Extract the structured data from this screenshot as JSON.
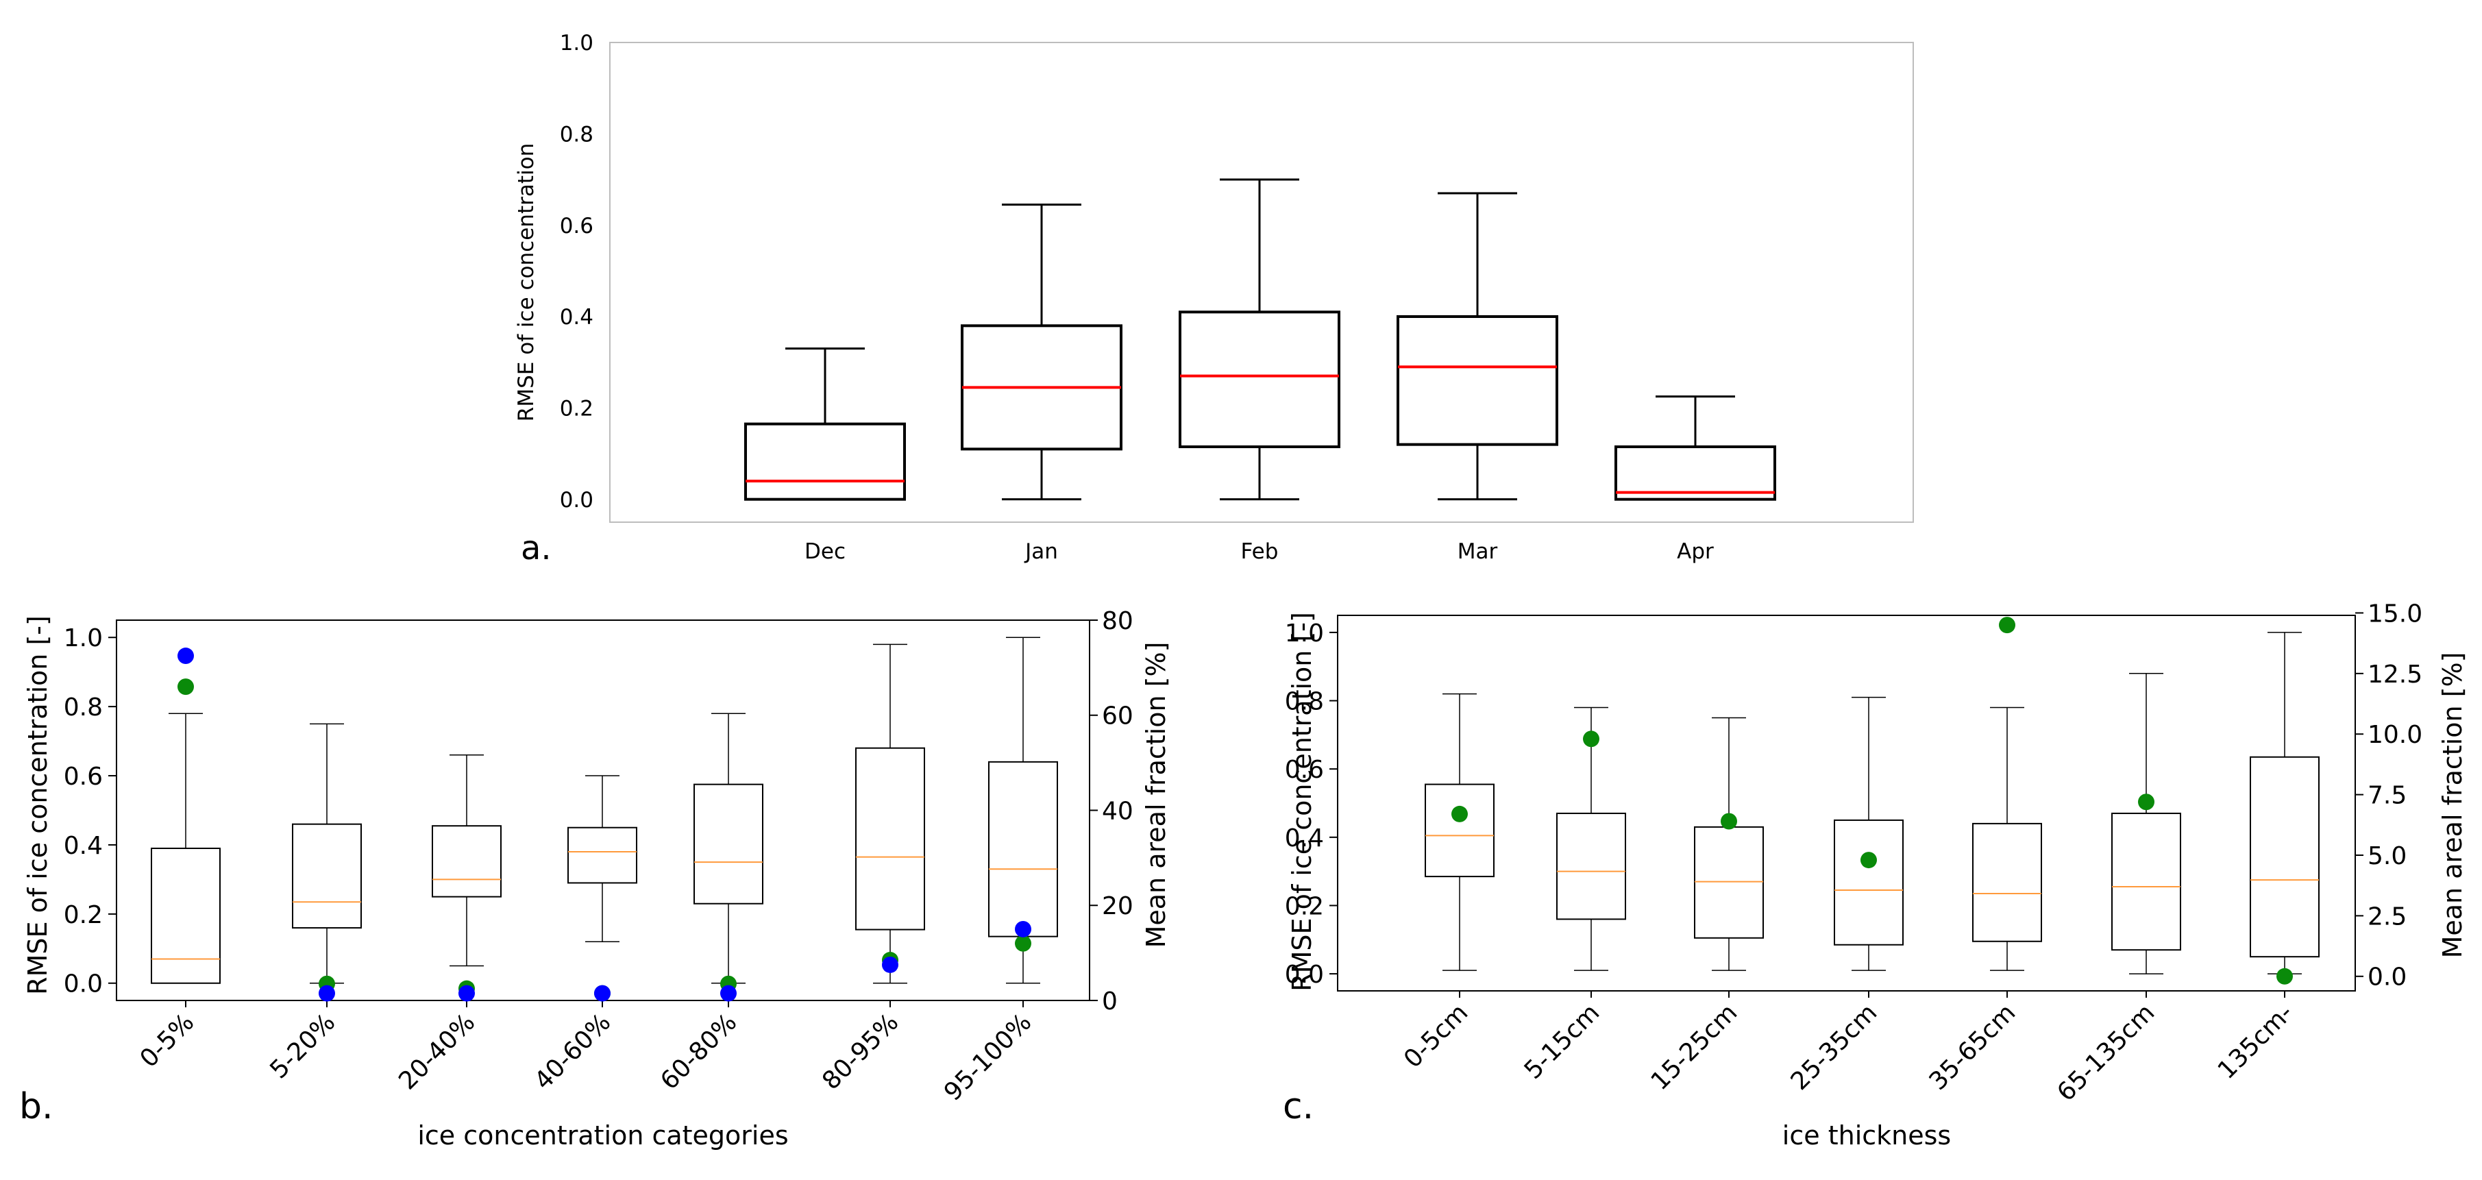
{
  "chart_data": [
    {
      "panel_label": "a.",
      "type": "box",
      "ylabel": "RMSE of ice concentration",
      "ylim": [
        -0.05,
        1.0
      ],
      "yticks": [
        "0.0",
        "0.2",
        "0.4",
        "0.6",
        "0.8",
        "1.0"
      ],
      "categories": [
        "Dec",
        "Jan",
        "Feb",
        "Mar",
        "Apr"
      ],
      "boxes": [
        {
          "whislo": 0.0,
          "q1": 0.0,
          "med": 0.04,
          "q3": 0.165,
          "whishi": 0.33
        },
        {
          "whislo": 0.0,
          "q1": 0.11,
          "med": 0.245,
          "q3": 0.38,
          "whishi": 0.645
        },
        {
          "whislo": 0.0,
          "q1": 0.115,
          "med": 0.27,
          "q3": 0.41,
          "whishi": 0.7
        },
        {
          "whislo": 0.0,
          "q1": 0.12,
          "med": 0.29,
          "q3": 0.4,
          "whishi": 0.67
        },
        {
          "whislo": 0.0,
          "q1": 0.0,
          "med": 0.015,
          "q3": 0.115,
          "whishi": 0.225
        }
      ],
      "colors": {
        "box": "#000000",
        "median": "#ff0000"
      }
    },
    {
      "panel_label": "b.",
      "type": "box",
      "xlabel": "ice concentration categories",
      "ylabel": "RMSE of ice concentration [-]",
      "y2label": "Mean areal fraction [%]",
      "ylim": [
        -0.05,
        1.05
      ],
      "y2lim": [
        0,
        80
      ],
      "yticks": [
        "0.0",
        "0.2",
        "0.4",
        "0.6",
        "0.8",
        "1.0"
      ],
      "y2ticks": [
        "0",
        "20",
        "40",
        "60",
        "80"
      ],
      "categories": [
        "0-5%",
        "5-20%",
        "20-40%",
        "40-60%",
        "60-80%",
        "80-95%",
        "95-100%"
      ],
      "boxes": [
        {
          "whislo": 0.0,
          "q1": 0.0,
          "med": 0.07,
          "q3": 0.39,
          "whishi": 0.78
        },
        {
          "whislo": 0.0,
          "q1": 0.16,
          "med": 0.235,
          "q3": 0.46,
          "whishi": 0.75
        },
        {
          "whislo": 0.05,
          "q1": 0.25,
          "med": 0.3,
          "q3": 0.455,
          "whishi": 0.66
        },
        {
          "whislo": 0.12,
          "q1": 0.29,
          "med": 0.38,
          "q3": 0.45,
          "whishi": 0.6
        },
        {
          "whislo": 0.0,
          "q1": 0.23,
          "med": 0.35,
          "q3": 0.575,
          "whishi": 0.78
        },
        {
          "whislo": 0.0,
          "q1": 0.155,
          "med": 0.365,
          "q3": 0.68,
          "whishi": 0.98
        },
        {
          "whislo": 0.0,
          "q1": 0.135,
          "med": 0.33,
          "q3": 0.64,
          "whishi": 1.0
        }
      ],
      "green_points_pct": [
        66,
        3.5,
        2.5,
        1.5,
        3.5,
        8.5,
        12
      ],
      "blue_points_pct": [
        72.5,
        1.5,
        1.5,
        1.5,
        1.5,
        7.5,
        15
      ],
      "colors": {
        "box": "#000000",
        "median": "#ff9a3c",
        "green": "#0a8a0a",
        "blue": "#0000ff"
      }
    },
    {
      "panel_label": "c.",
      "type": "box",
      "xlabel": "ice thickness",
      "ylabel": "RMSE of ice concentration [-]",
      "y2label": "Mean areal fraction [%]",
      "ylim": [
        -0.05,
        1.05
      ],
      "y2lim": [
        -0.6,
        14.9
      ],
      "yticks": [
        "0.0",
        "0.2",
        "0.4",
        "0.6",
        "0.8",
        "1.0"
      ],
      "y2ticks": [
        "0.0",
        "2.5",
        "5.0",
        "7.5",
        "10.0",
        "12.5",
        "15.0"
      ],
      "categories": [
        "0-5cm",
        "5-15cm",
        "15-25cm",
        "25-35cm",
        "35-65cm",
        "65-135cm",
        "135cm-"
      ],
      "boxes": [
        {
          "whislo": 0.01,
          "q1": 0.285,
          "med": 0.405,
          "q3": 0.555,
          "whishi": 0.82
        },
        {
          "whislo": 0.01,
          "q1": 0.16,
          "med": 0.3,
          "q3": 0.47,
          "whishi": 0.78
        },
        {
          "whislo": 0.01,
          "q1": 0.105,
          "med": 0.27,
          "q3": 0.43,
          "whishi": 0.75
        },
        {
          "whislo": 0.01,
          "q1": 0.085,
          "med": 0.245,
          "q3": 0.45,
          "whishi": 0.81
        },
        {
          "whislo": 0.01,
          "q1": 0.095,
          "med": 0.235,
          "q3": 0.44,
          "whishi": 0.78
        },
        {
          "whislo": 0.0,
          "q1": 0.07,
          "med": 0.255,
          "q3": 0.47,
          "whishi": 0.88
        },
        {
          "whislo": 0.0,
          "q1": 0.05,
          "med": 0.275,
          "q3": 0.635,
          "whishi": 1.0
        }
      ],
      "green_points_pct": [
        6.7,
        9.8,
        6.4,
        4.8,
        14.5,
        7.2,
        0.0
      ],
      "colors": {
        "box": "#000000",
        "median": "#ff9a3c",
        "green": "#0a8a0a"
      }
    }
  ]
}
